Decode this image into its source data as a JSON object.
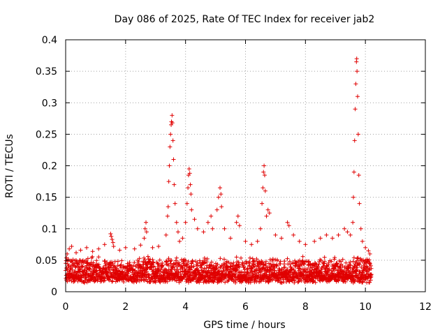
{
  "chart_data": {
    "type": "scatter",
    "title": "Day 086 of 2025, Rate Of TEC Index for receiver jab2",
    "xlabel": "GPS time / hours",
    "ylabel": "ROTI / TECUs",
    "xlim": [
      0,
      12
    ],
    "ylim": [
      0,
      0.4
    ],
    "xticks": [
      0,
      2,
      4,
      6,
      8,
      10,
      12
    ],
    "xtick_labels": [
      "0",
      "2",
      "4",
      "6",
      "8",
      "10",
      "12"
    ],
    "yticks": [
      0,
      0.05,
      0.1,
      0.15,
      0.2,
      0.25,
      0.3,
      0.35,
      0.4
    ],
    "ytick_labels": [
      "0",
      "0.05",
      "0.1",
      "0.15",
      "0.2",
      "0.25",
      "0.3",
      "0.35",
      "0.4"
    ],
    "grid": true,
    "marker": "plus",
    "marker_color": "#e00000",
    "series": [
      {
        "name": "ROTI",
        "baseline": {
          "x_start": 0.0,
          "x_end": 10.2,
          "y_low": 0.005,
          "y_high": 0.065
        },
        "points": [
          [
            0.05,
            0.06
          ],
          [
            0.12,
            0.068
          ],
          [
            0.2,
            0.072
          ],
          [
            0.35,
            0.062
          ],
          [
            0.5,
            0.066
          ],
          [
            0.7,
            0.07
          ],
          [
            0.9,
            0.064
          ],
          [
            1.1,
            0.068
          ],
          [
            1.3,
            0.075
          ],
          [
            1.5,
            0.092
          ],
          [
            1.52,
            0.088
          ],
          [
            1.55,
            0.083
          ],
          [
            1.58,
            0.078
          ],
          [
            1.6,
            0.072
          ],
          [
            1.8,
            0.066
          ],
          [
            2.0,
            0.07
          ],
          [
            2.3,
            0.068
          ],
          [
            2.5,
            0.074
          ],
          [
            2.62,
            0.085
          ],
          [
            2.65,
            0.1
          ],
          [
            2.68,
            0.11
          ],
          [
            2.7,
            0.095
          ],
          [
            2.9,
            0.07
          ],
          [
            3.1,
            0.072
          ],
          [
            3.35,
            0.09
          ],
          [
            3.4,
            0.12
          ],
          [
            3.42,
            0.135
          ],
          [
            3.44,
            0.175
          ],
          [
            3.46,
            0.2
          ],
          [
            3.48,
            0.23
          ],
          [
            3.5,
            0.25
          ],
          [
            3.52,
            0.265
          ],
          [
            3.53,
            0.27
          ],
          [
            3.55,
            0.28
          ],
          [
            3.56,
            0.268
          ],
          [
            3.58,
            0.24
          ],
          [
            3.6,
            0.21
          ],
          [
            3.62,
            0.17
          ],
          [
            3.65,
            0.14
          ],
          [
            3.7,
            0.11
          ],
          [
            3.75,
            0.095
          ],
          [
            3.8,
            0.08
          ],
          [
            3.9,
            0.085
          ],
          [
            4.0,
            0.11
          ],
          [
            4.05,
            0.14
          ],
          [
            4.08,
            0.165
          ],
          [
            4.1,
            0.185
          ],
          [
            4.12,
            0.195
          ],
          [
            4.14,
            0.188
          ],
          [
            4.16,
            0.17
          ],
          [
            4.18,
            0.155
          ],
          [
            4.2,
            0.13
          ],
          [
            4.3,
            0.115
          ],
          [
            4.4,
            0.1
          ],
          [
            4.6,
            0.095
          ],
          [
            4.75,
            0.11
          ],
          [
            4.85,
            0.12
          ],
          [
            4.9,
            0.1
          ],
          [
            5.05,
            0.13
          ],
          [
            5.1,
            0.15
          ],
          [
            5.15,
            0.165
          ],
          [
            5.18,
            0.155
          ],
          [
            5.2,
            0.135
          ],
          [
            5.3,
            0.1
          ],
          [
            5.5,
            0.085
          ],
          [
            5.7,
            0.11
          ],
          [
            5.75,
            0.12
          ],
          [
            5.8,
            0.105
          ],
          [
            6.0,
            0.08
          ],
          [
            6.2,
            0.075
          ],
          [
            6.4,
            0.08
          ],
          [
            6.5,
            0.1
          ],
          [
            6.55,
            0.14
          ],
          [
            6.58,
            0.165
          ],
          [
            6.6,
            0.19
          ],
          [
            6.62,
            0.2
          ],
          [
            6.64,
            0.185
          ],
          [
            6.66,
            0.16
          ],
          [
            6.7,
            0.12
          ],
          [
            6.75,
            0.13
          ],
          [
            6.8,
            0.125
          ],
          [
            7.0,
            0.09
          ],
          [
            7.2,
            0.085
          ],
          [
            7.4,
            0.11
          ],
          [
            7.45,
            0.105
          ],
          [
            7.6,
            0.09
          ],
          [
            7.8,
            0.08
          ],
          [
            8.0,
            0.075
          ],
          [
            8.3,
            0.08
          ],
          [
            8.5,
            0.085
          ],
          [
            8.7,
            0.09
          ],
          [
            8.9,
            0.085
          ],
          [
            9.1,
            0.09
          ],
          [
            9.3,
            0.1
          ],
          [
            9.4,
            0.095
          ],
          [
            9.5,
            0.09
          ],
          [
            9.58,
            0.11
          ],
          [
            9.6,
            0.15
          ],
          [
            9.62,
            0.19
          ],
          [
            9.64,
            0.24
          ],
          [
            9.66,
            0.29
          ],
          [
            9.68,
            0.33
          ],
          [
            9.7,
            0.365
          ],
          [
            9.71,
            0.37
          ],
          [
            9.72,
            0.35
          ],
          [
            9.74,
            0.31
          ],
          [
            9.76,
            0.25
          ],
          [
            9.78,
            0.185
          ],
          [
            9.8,
            0.14
          ],
          [
            9.85,
            0.1
          ],
          [
            9.9,
            0.08
          ],
          [
            10.0,
            0.07
          ],
          [
            10.1,
            0.065
          ],
          [
            10.15,
            0.06
          ]
        ]
      }
    ]
  }
}
